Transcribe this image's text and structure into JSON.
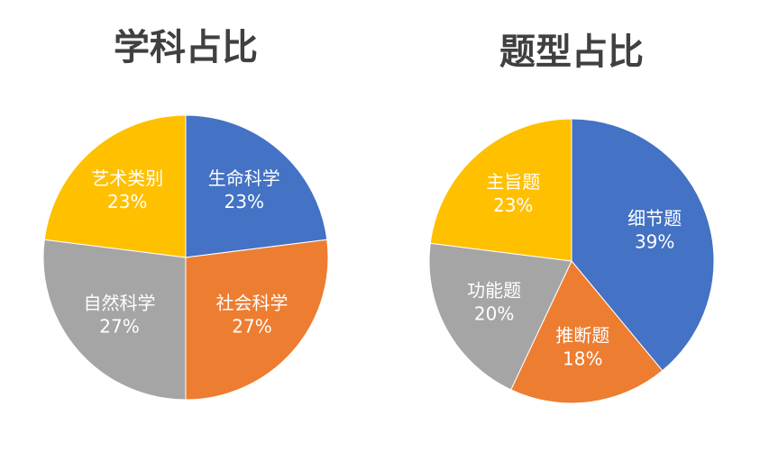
{
  "chart_data": [
    {
      "type": "pie",
      "title": "学科占比",
      "categories": [
        "生命科学",
        "社会科学",
        "自然科学",
        "艺术类别"
      ],
      "values": [
        23,
        27,
        27,
        23
      ],
      "value_labels": [
        "23%",
        "27%",
        "27%",
        "23%"
      ],
      "colors": [
        "#4472c4",
        "#ed7d31",
        "#a5a5a5",
        "#ffc000"
      ]
    },
    {
      "type": "pie",
      "title": "题型占比",
      "categories": [
        "细节题",
        "推断题",
        "功能题",
        "主旨题"
      ],
      "values": [
        39,
        18,
        20,
        23
      ],
      "value_labels": [
        "39%",
        "18%",
        "20%",
        "23%"
      ],
      "colors": [
        "#4472c4",
        "#ed7d31",
        "#a5a5a5",
        "#ffc000"
      ]
    }
  ]
}
